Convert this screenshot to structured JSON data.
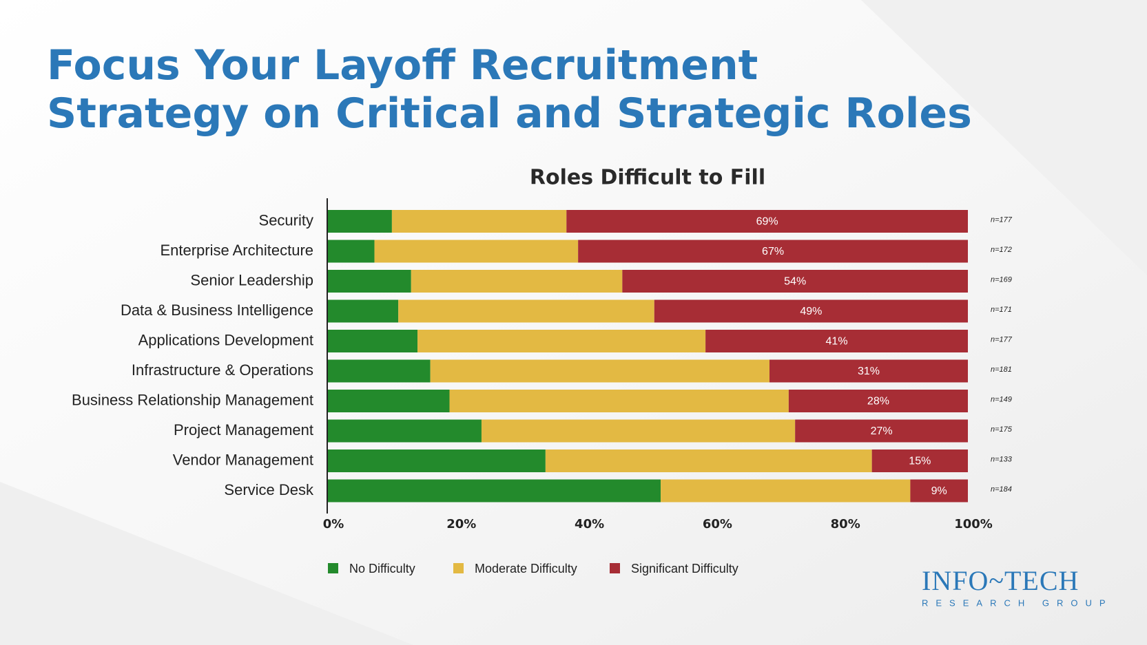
{
  "chart_data": {
    "type": "stacked-bar-100",
    "title": "Focus Your Layoff Recruitment Strategy on Critical and Strategic Roles",
    "subtitle": "Roles Difficult to Fill",
    "categories": [
      "Security",
      "Enterprise Architecture",
      "Senior Leadership",
      "Data & Business Intelligence",
      "Applications Development",
      "Infrastructure & Operations",
      "Business Relationship Management",
      "Project Management",
      "Vendor Management",
      "Service Desk"
    ],
    "series": [
      {
        "name": "No Difficulty",
        "color": "#238a2c",
        "values": [
          11,
          8,
          13,
          11,
          14,
          16,
          19,
          24,
          34,
          52
        ]
      },
      {
        "name": "Moderate Difficulty",
        "color": "#e3b943",
        "values": [
          30,
          35,
          33,
          40,
          45,
          53,
          53,
          49,
          51,
          39
        ]
      },
      {
        "name": "Significant Difficulty",
        "color": "#a72d35",
        "values": [
          69,
          67,
          54,
          49,
          41,
          31,
          28,
          27,
          15,
          9
        ],
        "value_labels": [
          "69%",
          "67%",
          "54%",
          "49%",
          "41%",
          "31%",
          "28%",
          "27%",
          "15%",
          "9%"
        ]
      }
    ],
    "n_labels": [
      "n=177",
      "n=172",
      "n=169",
      "n=171",
      "n=177",
      "n=181",
      "n=149",
      "n=175",
      "n=133",
      "n=184"
    ],
    "xlim": [
      0,
      100
    ],
    "xticks": [
      {
        "value": 0,
        "label": "0%"
      },
      {
        "value": 20,
        "label": "20%"
      },
      {
        "value": 40,
        "label": "40%"
      },
      {
        "value": 60,
        "label": "60%"
      },
      {
        "value": 80,
        "label": "80%"
      },
      {
        "value": 100,
        "label": "100%"
      }
    ],
    "legend": "bottom"
  },
  "logo": {
    "name": "INFO~TECH",
    "tagline": "RESEARCH GROUP"
  }
}
